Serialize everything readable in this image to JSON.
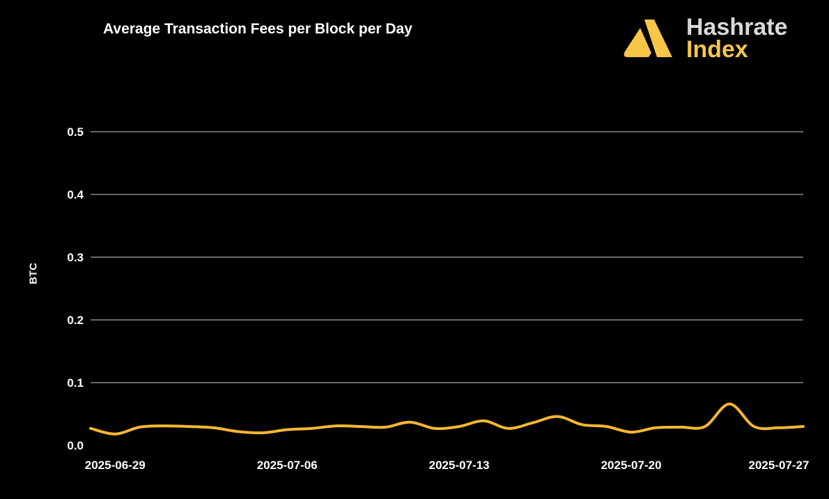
{
  "colors": {
    "background": "#000000",
    "line": "#f7b731",
    "grid": "#8a8a8a",
    "brand_gold": "#f7c548",
    "brand_gray": "#d9d9d9"
  },
  "brand": {
    "word1": "Hashrate",
    "word2": "Index",
    "icon": "hashrate-index-logo-icon"
  },
  "chart_data": {
    "type": "line",
    "title": "Average Transaction Fees per Block per Day",
    "xlabel": "",
    "ylabel": "BTC",
    "ylim": [
      0,
      0.5
    ],
    "yticks": [
      "0.0",
      "0.1",
      "0.2",
      "0.3",
      "0.4",
      "0.5"
    ],
    "xticks": [
      "2025-06-29",
      "2025-07-06",
      "2025-07-13",
      "2025-07-20",
      "2025-07-27"
    ],
    "grid": true,
    "x": [
      "2025-06-28",
      "2025-06-29",
      "2025-06-30",
      "2025-07-01",
      "2025-07-02",
      "2025-07-03",
      "2025-07-04",
      "2025-07-05",
      "2025-07-06",
      "2025-07-07",
      "2025-07-08",
      "2025-07-09",
      "2025-07-10",
      "2025-07-11",
      "2025-07-12",
      "2025-07-13",
      "2025-07-14",
      "2025-07-15",
      "2025-07-16",
      "2025-07-17",
      "2025-07-18",
      "2025-07-19",
      "2025-07-20",
      "2025-07-21",
      "2025-07-22",
      "2025-07-23",
      "2025-07-24",
      "2025-07-25",
      "2025-07-26",
      "2025-07-27"
    ],
    "series": [
      {
        "values": [
          0.027,
          0.018,
          0.029,
          0.031,
          0.03,
          0.028,
          0.022,
          0.02,
          0.025,
          0.027,
          0.031,
          0.03,
          0.029,
          0.037,
          0.027,
          0.03,
          0.039,
          0.027,
          0.036,
          0.046,
          0.033,
          0.03,
          0.021,
          0.028,
          0.029,
          0.03,
          0.066,
          0.03,
          0.028,
          0.03
        ]
      }
    ]
  }
}
